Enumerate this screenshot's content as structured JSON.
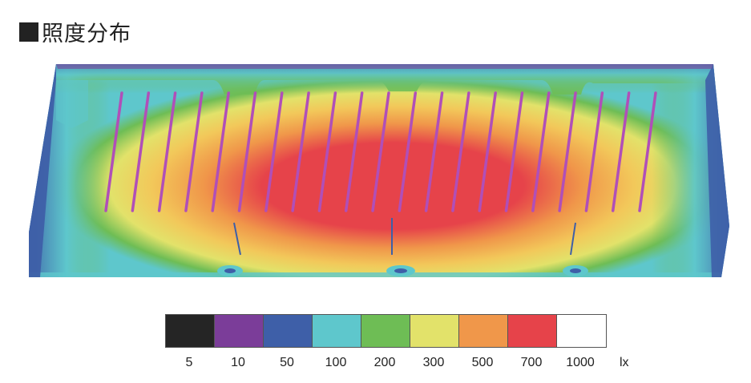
{
  "title": "照度分布",
  "legend": {
    "items": [
      {
        "label": "5",
        "color": "#252525"
      },
      {
        "label": "10",
        "color": "#7b3d99"
      },
      {
        "label": "50",
        "color": "#3e5fa8"
      },
      {
        "label": "100",
        "color": "#5ec7cc"
      },
      {
        "label": "200",
        "color": "#6ebd55"
      },
      {
        "label": "300",
        "color": "#e2e26a"
      },
      {
        "label": "500",
        "color": "#f0974a"
      },
      {
        "label": "700",
        "color": "#e6434a"
      },
      {
        "label": "1000",
        "color": "#ffffff"
      }
    ],
    "unit": "lx"
  },
  "luminaire_color": "#b04fb8",
  "luminaire_count": 21
}
